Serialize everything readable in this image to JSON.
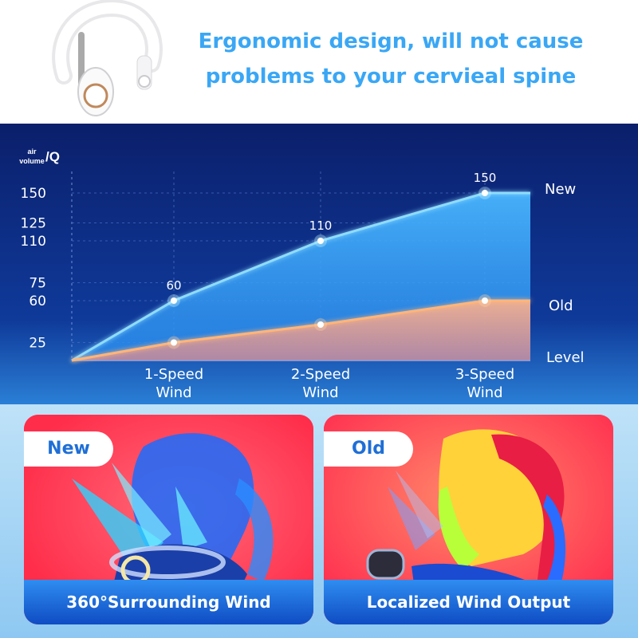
{
  "header": {
    "headline_line1": "Ergonomic design, will not cause",
    "headline_line2": "problems to your cervieal spine"
  },
  "chart_data": {
    "type": "line",
    "categories": [
      "1-Speed\nWind",
      "2-Speed\nWind",
      "3-Speed\nWind"
    ],
    "x_axis_label": "Level",
    "y_axis_label": "air volume/Q",
    "y_axis_label_parts": {
      "small_top": "air",
      "small_bottom": "volume",
      "unit": "/Q"
    },
    "y_ticks": [
      25,
      60,
      75,
      110,
      125,
      150
    ],
    "y_range": [
      10,
      160
    ],
    "series": [
      {
        "name": "New",
        "color": "#5fc8ff",
        "values": [
          60,
          110,
          150
        ],
        "labels": [
          "60",
          "110",
          "150"
        ]
      },
      {
        "name": "Old",
        "color": "#ff9a5c",
        "values": [
          25,
          40,
          60
        ]
      }
    ],
    "origin_value": 10
  },
  "comparison": {
    "new": {
      "tag": "New",
      "caption": "360°Surrounding Wind"
    },
    "old": {
      "tag": "Old",
      "caption": "Localized Wind Output"
    }
  }
}
